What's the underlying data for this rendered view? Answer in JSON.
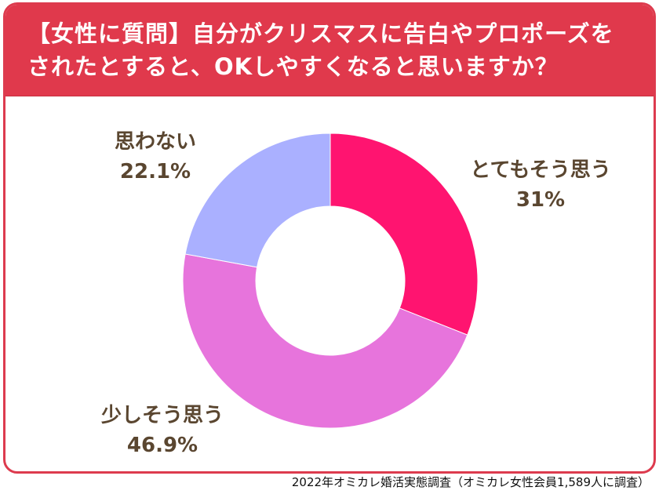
{
  "title": "【女性に質問】自分がクリスマスに告白やプロポーズを\nされたとすると、OKしやすくなると思いますか？",
  "source": "2022年オミカレ婚活実態調査（オミカレ女性会員1,589人に調査）",
  "chart_data": {
    "type": "pie",
    "donut": true,
    "categories": [
      "とてもそう思う",
      "少しそう思う",
      "思わない"
    ],
    "values": [
      31,
      46.9,
      22.1
    ],
    "value_labels": [
      "31%",
      "46.9%",
      "22.1%"
    ],
    "colors": [
      "#ff1470",
      "#e774dc",
      "#aab0ff"
    ],
    "start": "12 o'clock",
    "direction": "clockwise"
  }
}
